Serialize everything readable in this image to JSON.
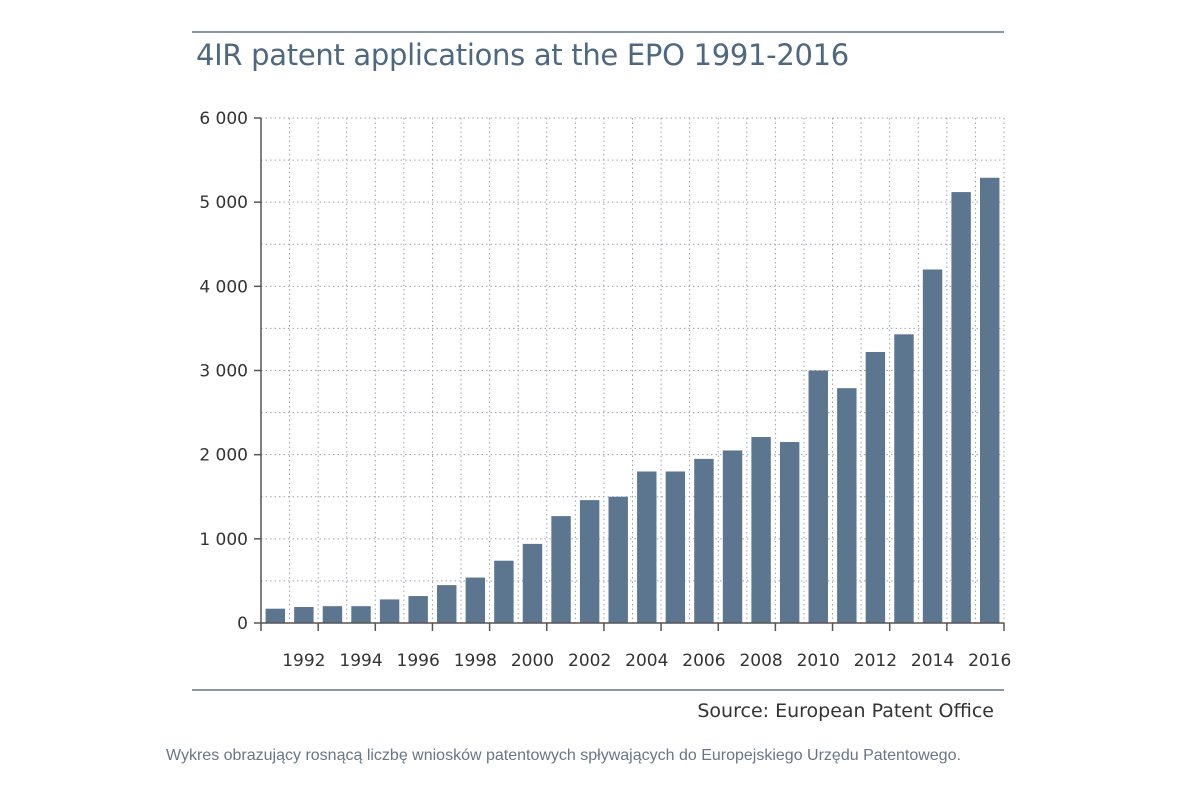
{
  "chart_data": {
    "type": "bar",
    "title": "4IR patent applications at the EPO 1991-2016",
    "xlabel": "",
    "ylabel": "",
    "categories": [
      "1991",
      "1992",
      "1993",
      "1994",
      "1995",
      "1996",
      "1997",
      "1998",
      "1999",
      "2000",
      "2001",
      "2002",
      "2003",
      "2004",
      "2005",
      "2006",
      "2007",
      "2008",
      "2009",
      "2010",
      "2011",
      "2012",
      "2013",
      "2014",
      "2015",
      "2016"
    ],
    "x_tick_labels": [
      "1992",
      "1994",
      "1996",
      "1998",
      "2000",
      "2002",
      "2004",
      "2006",
      "2008",
      "2010",
      "2012",
      "2014",
      "2016"
    ],
    "y_tick_labels": [
      "0",
      "1 000",
      "2 000",
      "3 000",
      "4 000",
      "5 000",
      "6 000"
    ],
    "ylim": [
      0,
      6000
    ],
    "y_ticks": [
      0,
      1000,
      2000,
      3000,
      4000,
      5000,
      6000
    ],
    "values": [
      170,
      190,
      200,
      200,
      280,
      320,
      450,
      540,
      740,
      940,
      1270,
      1460,
      1500,
      1800,
      1800,
      1950,
      2050,
      2210,
      2150,
      3000,
      2790,
      3220,
      3430,
      4200,
      5120,
      5290
    ],
    "grid": true,
    "bar_color": "#5c7690"
  },
  "source": "Source: European Patent Office",
  "caption": "Wykres obrazujący rosnącą liczbę wniosków patentowych spływających do Europejskiego Urzędu Patentowego."
}
